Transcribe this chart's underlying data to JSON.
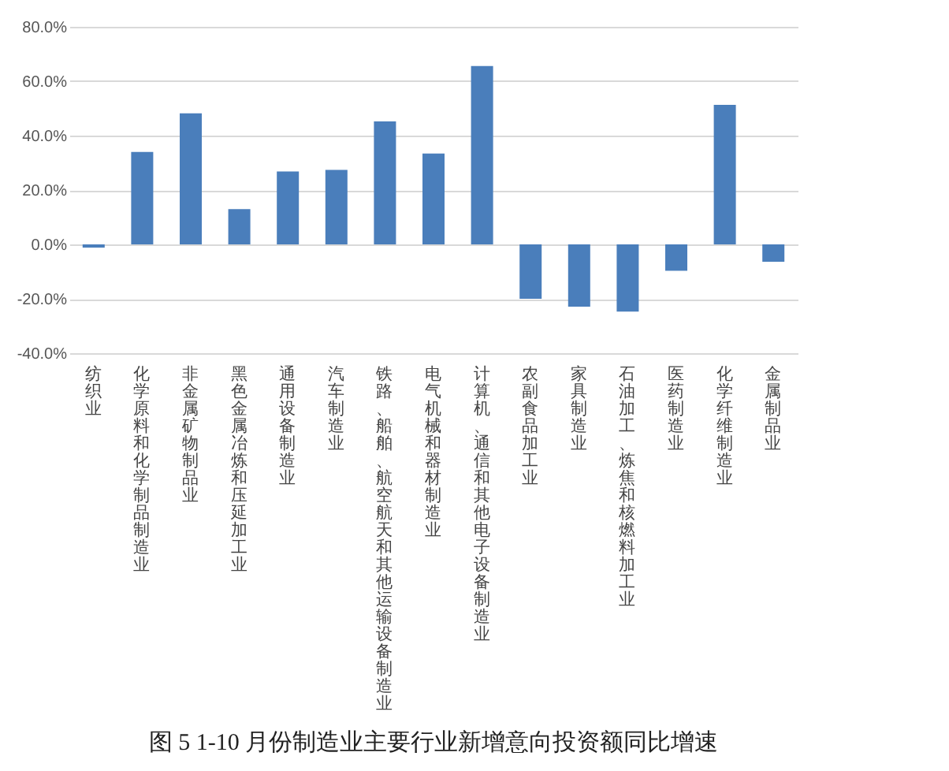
{
  "chart_data": {
    "type": "bar",
    "title": "图 5   1-10 月份制造业主要行业新增意向投资额同比增速",
    "categories": [
      "纺织业",
      "化学原料和化学制品制造业",
      "非金属矿物制品业",
      "黑色金属冶炼和压延加工业",
      "通用设备制造业",
      "汽车制造业",
      "铁路、船舶、航空航天和其他运输设备制造业",
      "电气机械和器材制造业",
      "计算机、通信和其他电子设备制造业",
      "农副食品加工业",
      "家具制造业",
      "石油加工、炼焦和核燃料加工业",
      "医药制造业",
      "化学纤维制造业",
      "金属制品业"
    ],
    "values": [
      -1.2,
      34.0,
      48.2,
      13.0,
      26.8,
      27.4,
      45.2,
      33.4,
      65.6,
      -20.0,
      -22.9,
      -24.7,
      -9.7,
      51.3,
      -6.4
    ],
    "color": "#4a7ebb",
    "ylim": [
      -40,
      80
    ],
    "yticks": [
      {
        "value": -40,
        "label": "-40.0%"
      },
      {
        "value": -20,
        "label": "-20.0%"
      },
      {
        "value": 0,
        "label": "0.0%"
      },
      {
        "value": 20,
        "label": "20.0%"
      },
      {
        "value": 40,
        "label": "40.0%"
      },
      {
        "value": 60,
        "label": "60.0%"
      },
      {
        "value": 80,
        "label": "80.0%"
      }
    ],
    "grid": "y"
  }
}
